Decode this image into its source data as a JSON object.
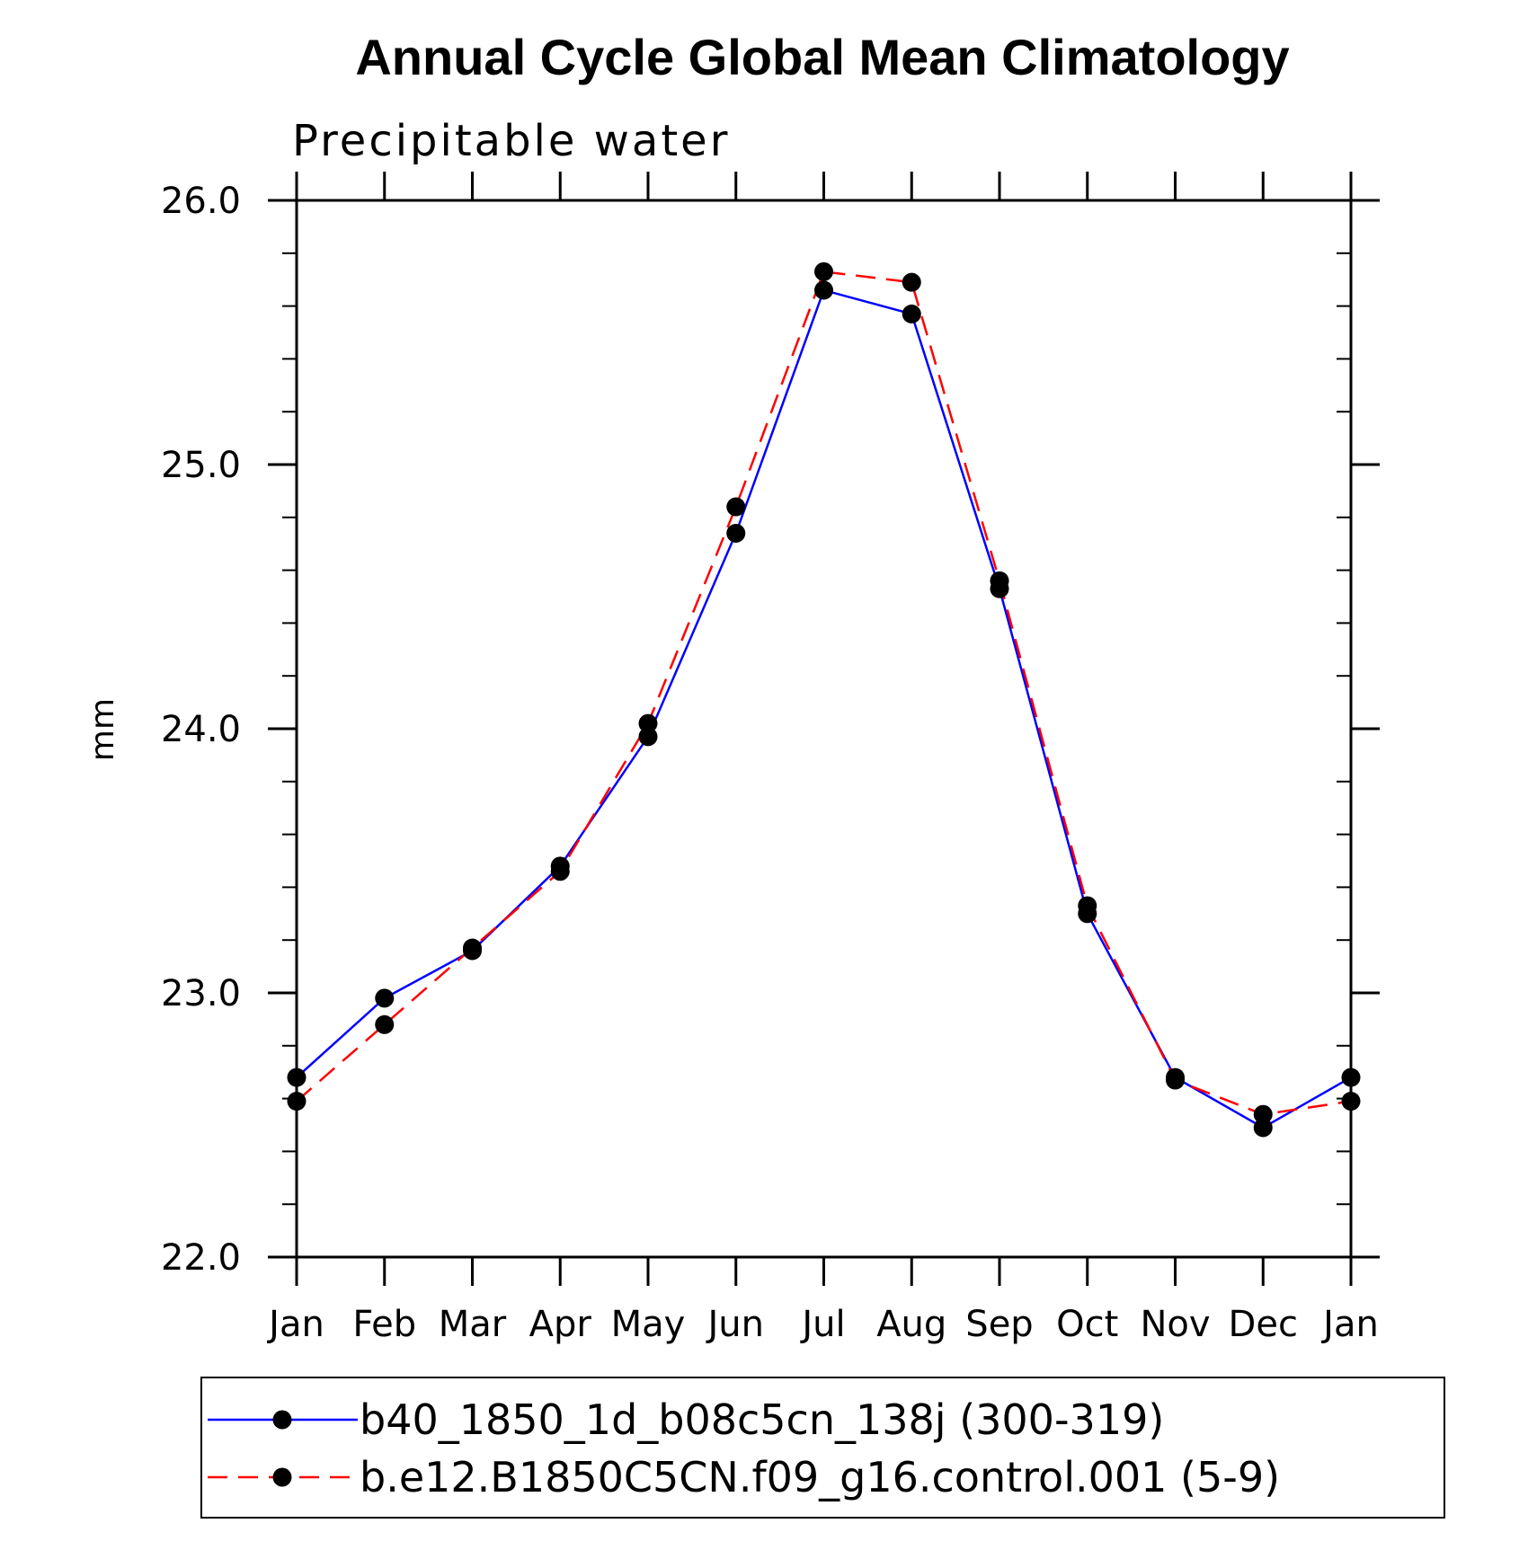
{
  "chart_data": {
    "type": "line",
    "title": "Annual Cycle Global Mean Climatology",
    "subtitle": "Precipitable water",
    "xlabel": "",
    "ylabel": "mm",
    "categories": [
      "Jan",
      "Feb",
      "Mar",
      "Apr",
      "May",
      "Jun",
      "Jul",
      "Aug",
      "Sep",
      "Oct",
      "Nov",
      "Dec",
      "Jan"
    ],
    "ylim": [
      22.0,
      26.0
    ],
    "yticks": [
      "22.0",
      "23.0",
      "24.0",
      "25.0",
      "26.0"
    ],
    "ytick_values": [
      22.0,
      23.0,
      24.0,
      25.0,
      26.0
    ],
    "y_minor_step": 0.2,
    "grid": false,
    "legend_position": "bottom",
    "series": [
      {
        "name": "b40_1850_1d_b08c5cn_138j (300-319)",
        "color": "#0000ff",
        "dash": "solid",
        "marker": "filled-circle",
        "values": [
          22.68,
          22.98,
          23.16,
          23.48,
          23.97,
          24.74,
          25.66,
          25.57,
          24.53,
          23.3,
          22.68,
          22.49,
          22.68
        ]
      },
      {
        "name": "b.e12.B1850C5CN.f09_g16.control.001 (5-9)",
        "color": "#ff0000",
        "dash": "dashed",
        "marker": "filled-circle",
        "values": [
          22.59,
          22.88,
          23.17,
          23.46,
          24.02,
          24.84,
          25.73,
          25.69,
          24.56,
          23.33,
          22.67,
          22.54,
          22.59
        ]
      }
    ]
  }
}
